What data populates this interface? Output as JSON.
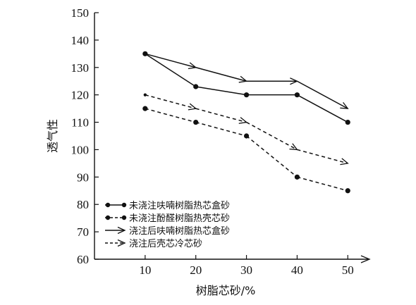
{
  "chart_data": {
    "type": "line",
    "title": "",
    "xlabel": "树脂芯砂/%",
    "ylabel": "透气性",
    "x": [
      10,
      20,
      30,
      40,
      50
    ],
    "xticks": [
      "10",
      "20",
      "30",
      "40",
      "50"
    ],
    "xlim": [
      0,
      54
    ],
    "ylim": [
      60,
      150
    ],
    "yticks": [
      "60",
      "70",
      "80",
      "90",
      "100",
      "110",
      "120",
      "130",
      "140",
      "150"
    ],
    "grid": false,
    "legend_position": "bottom-left",
    "series": [
      {
        "name": "未浇注呋喃树脂热芯盒砂",
        "values": [
          135,
          123,
          120,
          120,
          110
        ],
        "line": "solid",
        "marker": "dot"
      },
      {
        "name": "未浇注酚醛树脂热壳芯砂",
        "values": [
          115,
          110,
          105,
          90,
          85
        ],
        "line": "dashed",
        "marker": "dot"
      },
      {
        "name": "浇注后呋喃树脂热芯盒砂",
        "values": [
          135,
          130,
          125,
          125,
          115
        ],
        "line": "solid",
        "marker": "arrow"
      },
      {
        "name": "浇注后壳芯冷芯砂",
        "values": [
          120,
          115,
          110,
          100,
          95
        ],
        "line": "dashed",
        "marker": "arrow"
      }
    ],
    "colors": {
      "ink": "#111111"
    }
  }
}
